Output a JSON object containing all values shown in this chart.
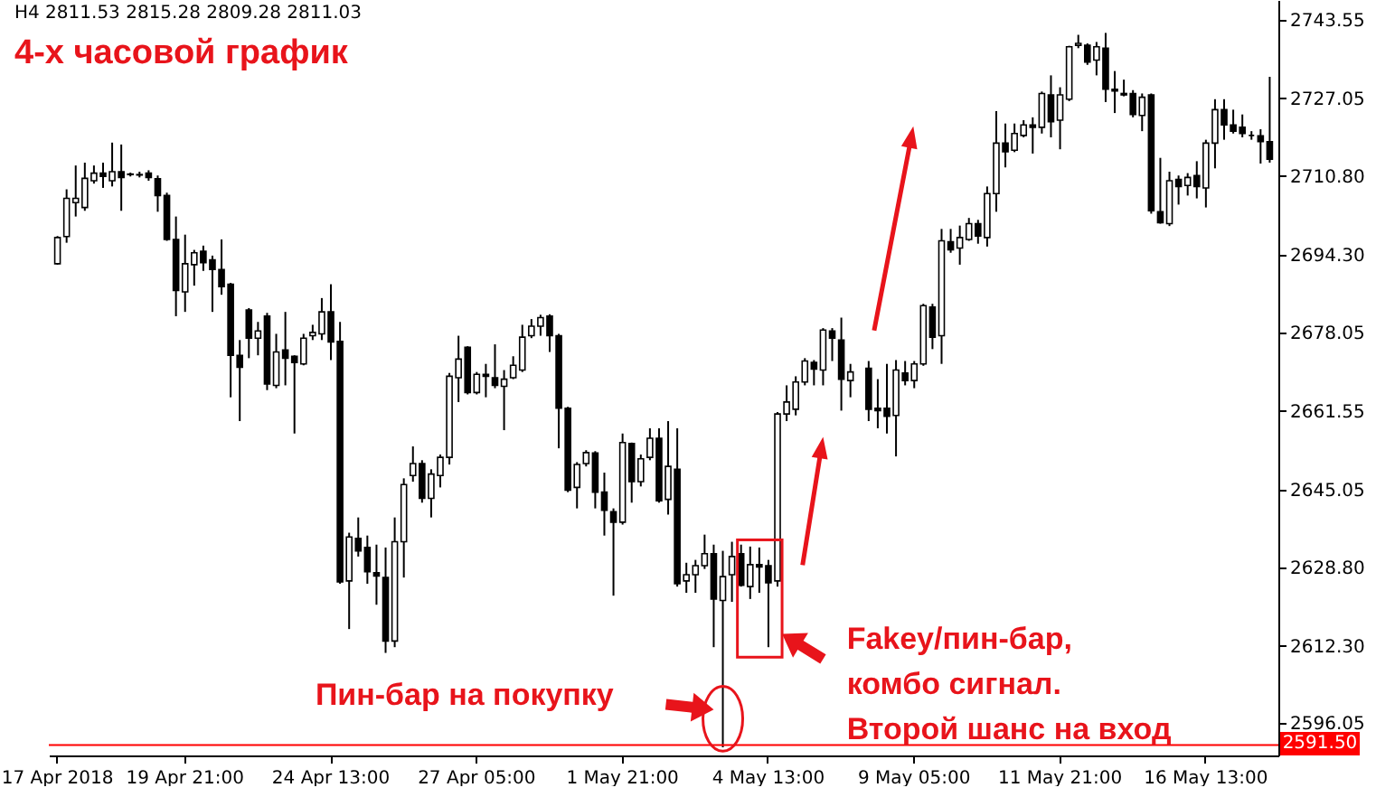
{
  "chart_data": {
    "type": "candlestick",
    "title": "4-х часовой график",
    "subtitle": "H4  2811.53 2815.28 2809.28 2811.03",
    "annotations": [
      "Пин-бар на покупку",
      "Fakey/пин-бар,\nкомбо сигнал.\nВторой шанс на вход"
    ],
    "categories": [
      "17 Apr 2018",
      null,
      null,
      null,
      null,
      null,
      null,
      null,
      null,
      null,
      null,
      null,
      null,
      null,
      "19 Apr 21:00",
      null,
      null,
      null,
      null,
      null,
      null,
      null,
      null,
      null,
      null,
      null,
      null,
      null,
      null,
      null,
      "24 Apr 13:00",
      null,
      null,
      null,
      null,
      null,
      null,
      null,
      null,
      null,
      null,
      null,
      null,
      null,
      null,
      null,
      "27 Apr 05:00",
      null,
      null,
      null,
      null,
      null,
      null,
      null,
      null,
      null,
      null,
      null,
      null,
      null,
      null,
      null,
      "1 May 21:00",
      null,
      null,
      null,
      null,
      null,
      null,
      null,
      null,
      null,
      null,
      null,
      null,
      null,
      null,
      null,
      "4 May 13:00",
      null,
      null,
      null,
      null,
      null,
      null,
      null,
      null,
      null,
      null,
      null,
      null,
      null,
      null,
      null,
      "9 May 05:00",
      null,
      null,
      null,
      null,
      null,
      null,
      null,
      null,
      null,
      null,
      null,
      null,
      null,
      null,
      null,
      "11 May 21:00",
      null,
      null,
      null,
      null,
      null,
      null,
      null,
      null,
      null,
      null,
      null,
      null,
      null,
      null,
      null,
      "16 May 13:00",
      null,
      null,
      null,
      null,
      null,
      null,
      null
    ],
    "ohlc": [
      [
        2692.4,
        2698.2,
        2692.2,
        2697.9
      ],
      [
        2698.1,
        2708.0,
        2696.8,
        2706.1
      ],
      [
        2705.2,
        2713.0,
        2702.3,
        2706.1
      ],
      [
        2704.2,
        2713.6,
        2703.5,
        2710.3
      ],
      [
        2709.8,
        2713.0,
        2709.2,
        2711.4
      ],
      [
        2711.4,
        2713.6,
        2708.3,
        2710.7
      ],
      [
        2709.8,
        2717.8,
        2708.6,
        2711.7
      ],
      [
        2711.7,
        2717.4,
        2703.5,
        2710.5
      ],
      [
        2711.1,
        2711.5,
        2710.7,
        2711.2
      ],
      [
        2711.1,
        2711.7,
        2710.5,
        2711.0
      ],
      [
        2711.4,
        2712.0,
        2709.8,
        2710.5
      ],
      [
        2710.2,
        2710.9,
        2703.3,
        2706.7
      ],
      [
        2706.7,
        2707.3,
        2697.2,
        2697.5
      ],
      [
        2697.5,
        2702.3,
        2681.4,
        2686.8
      ],
      [
        2686.5,
        2698.5,
        2682.3,
        2692.4
      ],
      [
        2692.2,
        2695.3,
        2687.8,
        2694.7
      ],
      [
        2695.0,
        2696.2,
        2690.9,
        2692.6
      ],
      [
        2693.2,
        2694.1,
        2682.3,
        2691.2
      ],
      [
        2691.2,
        2697.5,
        2685.9,
        2687.6
      ],
      [
        2688.1,
        2688.4,
        2664.4,
        2673.2
      ],
      [
        2673.2,
        2676.4,
        2659.4,
        2670.7
      ],
      [
        2682.7,
        2683.1,
        2672.6,
        2676.8
      ],
      [
        2676.8,
        2680.2,
        2673.2,
        2678.3
      ],
      [
        2681.4,
        2682.1,
        2665.9,
        2667.2
      ],
      [
        2666.9,
        2677.7,
        2666.3,
        2673.9
      ],
      [
        2674.3,
        2682.3,
        2666.9,
        2672.6
      ],
      [
        2673.0,
        2673.2,
        2656.8,
        2671.7
      ],
      [
        2671.4,
        2677.7,
        2671.1,
        2676.8
      ],
      [
        2677.3,
        2679.6,
        2676.4,
        2678.0
      ],
      [
        2677.7,
        2685.2,
        2676.4,
        2682.3
      ],
      [
        2682.3,
        2688.1,
        2672.2,
        2676.0
      ],
      [
        2676.1,
        2680.2,
        2625.3,
        2625.7
      ],
      [
        2625.9,
        2636.0,
        2615.8,
        2635.1
      ],
      [
        2634.8,
        2639.2,
        2631.0,
        2632.2
      ],
      [
        2632.9,
        2635.4,
        2625.3,
        2627.8
      ],
      [
        2627.6,
        2633.5,
        2620.9,
        2626.9
      ],
      [
        2626.6,
        2632.9,
        2610.8,
        2613.3
      ],
      [
        2613.3,
        2639.2,
        2612.0,
        2634.1
      ],
      [
        2634.1,
        2647.4,
        2626.6,
        2646.1
      ],
      [
        2648.0,
        2654.1,
        2646.7,
        2650.5
      ],
      [
        2650.5,
        2651.2,
        2642.3,
        2643.2
      ],
      [
        2643.2,
        2649.3,
        2639.2,
        2648.3
      ],
      [
        2648.0,
        2652.4,
        2645.5,
        2651.8
      ],
      [
        2651.8,
        2669.5,
        2650.3,
        2668.8
      ],
      [
        2668.5,
        2677.3,
        2663.4,
        2672.4
      ],
      [
        2674.9,
        2675.1,
        2665.0,
        2665.4
      ],
      [
        2665.4,
        2669.7,
        2665.0,
        2669.2
      ],
      [
        2669.2,
        2671.4,
        2664.4,
        2668.8
      ],
      [
        2668.5,
        2675.5,
        2666.3,
        2666.9
      ],
      [
        2666.7,
        2670.1,
        2657.5,
        2668.2
      ],
      [
        2668.5,
        2673.0,
        2668.2,
        2671.1
      ],
      [
        2670.1,
        2679.6,
        2669.7,
        2677.0
      ],
      [
        2677.3,
        2680.8,
        2676.8,
        2679.3
      ],
      [
        2679.3,
        2681.7,
        2677.3,
        2681.1
      ],
      [
        2681.4,
        2681.8,
        2673.9,
        2677.3
      ],
      [
        2677.3,
        2677.7,
        2653.7,
        2662.1
      ],
      [
        2662.1,
        2662.4,
        2644.5,
        2644.9
      ],
      [
        2645.5,
        2650.8,
        2641.1,
        2650.3
      ],
      [
        2650.5,
        2653.3,
        2649.9,
        2652.8
      ],
      [
        2652.7,
        2653.1,
        2641.1,
        2644.5
      ],
      [
        2644.5,
        2648.6,
        2635.4,
        2640.7
      ],
      [
        2640.4,
        2641.1,
        2622.8,
        2638.2
      ],
      [
        2638.2,
        2656.8,
        2637.7,
        2654.9
      ],
      [
        2654.7,
        2654.9,
        2642.3,
        2646.7
      ],
      [
        2646.7,
        2652.4,
        2645.7,
        2651.5
      ],
      [
        2651.8,
        2657.9,
        2651.2,
        2655.8
      ],
      [
        2655.8,
        2657.9,
        2642.3,
        2642.7
      ],
      [
        2643.0,
        2659.4,
        2639.8,
        2649.9
      ],
      [
        2649.3,
        2657.9,
        2624.7,
        2625.3
      ],
      [
        2625.9,
        2629.7,
        2623.4,
        2627.2
      ],
      [
        2627.2,
        2630.3,
        2623.4,
        2629.1
      ],
      [
        2629.1,
        2635.6,
        2628.4,
        2631.6
      ],
      [
        2631.6,
        2633.5,
        2612.0,
        2622.1
      ],
      [
        2621.8,
        2632.2,
        2591.0,
        2626.8
      ],
      [
        2627.2,
        2634.1,
        2621.5,
        2631.0
      ],
      [
        2631.6,
        2633.5,
        2624.7,
        2625.0
      ],
      [
        2624.7,
        2633.1,
        2622.1,
        2629.3
      ],
      [
        2629.3,
        2632.9,
        2623.4,
        2628.8
      ],
      [
        2629.1,
        2630.3,
        2612.0,
        2625.5
      ],
      [
        2625.9,
        2661.3,
        2624.7,
        2660.9
      ],
      [
        2660.9,
        2666.9,
        2659.4,
        2663.4
      ],
      [
        2661.9,
        2668.8,
        2660.6,
        2667.6
      ],
      [
        2667.6,
        2672.6,
        2666.9,
        2672.0
      ],
      [
        2671.7,
        2672.2,
        2666.9,
        2670.3
      ],
      [
        2670.1,
        2678.9,
        2666.9,
        2678.5
      ],
      [
        2678.3,
        2678.9,
        2672.0,
        2676.8
      ],
      [
        2676.4,
        2681.1,
        2661.6,
        2668.2
      ],
      [
        2667.9,
        2671.4,
        2664.4,
        2669.7
      ],
      null,
      [
        2670.5,
        2672.0,
        2659.4,
        2661.9
      ],
      [
        2662.1,
        2668.2,
        2657.9,
        2661.6
      ],
      [
        2662.1,
        2671.4,
        2656.8,
        2660.4
      ],
      [
        2660.6,
        2672.2,
        2652.0,
        2670.1
      ],
      [
        2669.5,
        2672.0,
        2666.9,
        2667.9
      ],
      [
        2667.9,
        2672.0,
        2666.3,
        2671.4
      ],
      [
        2671.4,
        2684.0,
        2671.0,
        2683.6
      ],
      [
        2683.3,
        2684.0,
        2674.5,
        2677.0
      ],
      [
        2677.3,
        2699.7,
        2671.4,
        2697.2
      ],
      [
        2697.0,
        2699.7,
        2694.7,
        2695.3
      ],
      [
        2695.7,
        2700.4,
        2692.2,
        2697.9
      ],
      [
        2697.5,
        2702.0,
        2697.2,
        2700.8
      ],
      [
        2700.8,
        2701.6,
        2696.6,
        2698.2
      ],
      [
        2697.9,
        2708.6,
        2696.0,
        2707.1
      ],
      [
        2707.1,
        2724.4,
        2703.3,
        2717.7
      ],
      [
        2717.7,
        2721.8,
        2712.6,
        2715.9
      ],
      [
        2716.2,
        2721.8,
        2715.8,
        2719.7
      ],
      [
        2719.3,
        2722.5,
        2718.9,
        2721.5
      ],
      [
        2721.5,
        2723.1,
        2715.5,
        2721.0
      ],
      [
        2721.0,
        2728.5,
        2719.7,
        2728.1
      ],
      [
        2727.8,
        2731.9,
        2718.9,
        2722.2
      ],
      [
        2722.5,
        2729.4,
        2716.4,
        2727.8
      ],
      [
        2726.9,
        2738.1,
        2726.5,
        2737.9
      ],
      [
        2738.2,
        2740.4,
        2737.6,
        2738.6
      ],
      [
        2738.2,
        2738.6,
        2734.1,
        2734.7
      ],
      [
        2735.1,
        2738.9,
        2731.9,
        2737.9
      ],
      [
        2737.6,
        2740.8,
        2726.3,
        2729.0
      ],
      [
        2729.0,
        2732.8,
        2724.0,
        2728.6
      ],
      [
        2727.8,
        2731.0,
        2727.5,
        2728.1
      ],
      [
        2728.1,
        2728.8,
        2723.1,
        2723.7
      ],
      [
        2723.5,
        2728.1,
        2720.2,
        2727.3
      ],
      [
        2727.8,
        2728.1,
        2702.9,
        2703.5
      ],
      [
        2703.3,
        2714.6,
        2700.8,
        2701.0
      ],
      [
        2700.8,
        2711.7,
        2700.3,
        2709.8
      ],
      [
        2710.1,
        2710.9,
        2704.8,
        2708.6
      ],
      [
        2708.8,
        2711.4,
        2706.7,
        2710.5
      ],
      [
        2710.9,
        2713.9,
        2706.1,
        2708.6
      ],
      [
        2708.3,
        2718.4,
        2704.2,
        2717.7
      ],
      [
        2717.7,
        2726.9,
        2712.4,
        2724.7
      ],
      [
        2724.7,
        2726.9,
        2718.4,
        2721.5
      ],
      [
        2721.5,
        2724.7,
        2719.7,
        2720.2
      ],
      [
        2721.0,
        2723.7,
        2718.9,
        2719.7
      ],
      [
        2719.3,
        2720.2,
        2718.4,
        2719.3
      ],
      [
        2719.2,
        2720.6,
        2713.4,
        2718.0
      ],
      [
        2718.0,
        2731.6,
        2713.6,
        2714.3
      ]
    ],
    "ylim": [
      2589.3,
      2747.7
    ],
    "yticks": [
      2743.55,
      2727.05,
      {
        "value": 2710.8,
        "label": "2710.80"
      },
      {
        "value": 2694.3,
        "label": "2694.30"
      },
      2678.05,
      2661.55,
      2645.05,
      {
        "value": 2628.8,
        "label": "2628.80"
      },
      {
        "value": 2612.3,
        "label": "2612.30"
      },
      2596.05
    ],
    "ref_lines": [
      {
        "axis": "y",
        "value": 2591.5,
        "label": "2591.50",
        "color": "#ff0000"
      }
    ]
  }
}
